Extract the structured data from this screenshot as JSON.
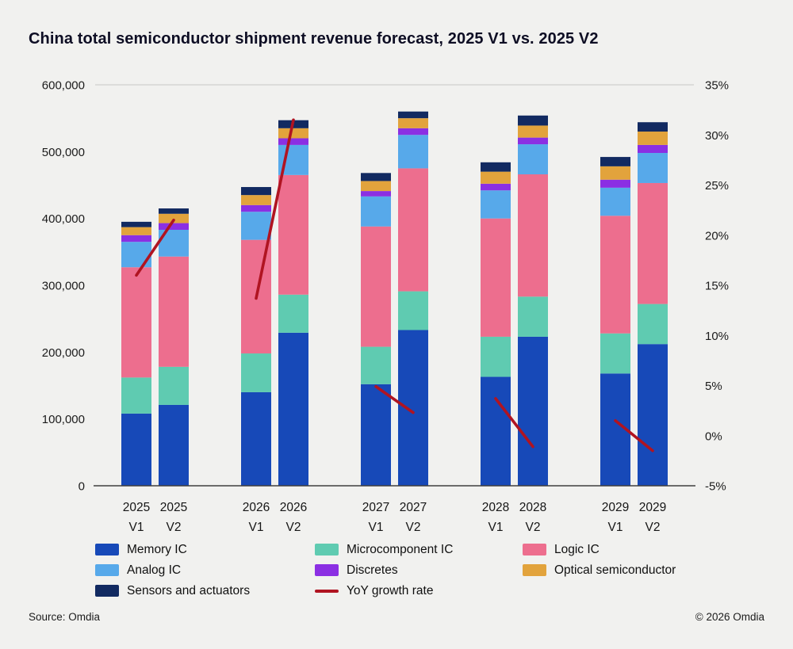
{
  "title": "China total semiconductor shipment revenue forecast, 2025 V1 vs. 2025 V2",
  "footer": {
    "source": "Source: Omdia",
    "copyright": "© 2026 Omdia"
  },
  "chart_data": {
    "type": "bar",
    "stacked": true,
    "legend_position": "bottom",
    "grid": "top-line-only",
    "categories": [
      "2025 V1",
      "2025 V2",
      "2026 V1",
      "2026 V2",
      "2027 V1",
      "2027 V2",
      "2028 V1",
      "2028 V2",
      "2029 V1",
      "2029 V2"
    ],
    "series": [
      {
        "name": "Memory IC",
        "color": "#1749b8",
        "values": [
          108000,
          121000,
          140000,
          229000,
          152000,
          233000,
          163000,
          223000,
          168000,
          212000
        ]
      },
      {
        "name": "Microcomponent IC",
        "color": "#5fcbb1",
        "values": [
          54000,
          57000,
          58000,
          57000,
          56000,
          58000,
          60000,
          60000,
          60000,
          60000
        ]
      },
      {
        "name": "Logic IC",
        "color": "#ed6e8e",
        "values": [
          165000,
          165000,
          170000,
          179000,
          180000,
          184000,
          177000,
          183000,
          176000,
          181000
        ]
      },
      {
        "name": "Analog IC",
        "color": "#57a9ea",
        "values": [
          38000,
          40000,
          42000,
          45000,
          45000,
          50000,
          42000,
          45000,
          42000,
          45000
        ]
      },
      {
        "name": "Discretes",
        "color": "#8b2fe3",
        "values": [
          10000,
          10000,
          10000,
          10000,
          8000,
          10000,
          10000,
          10000,
          12000,
          12000
        ]
      },
      {
        "name": "Optical semiconductor",
        "color": "#e2a33c",
        "values": [
          12000,
          14000,
          15000,
          15000,
          15000,
          15000,
          18000,
          18000,
          20000,
          20000
        ]
      },
      {
        "name": "Sensors and actuators",
        "color": "#122a61",
        "values": [
          8000,
          8000,
          12000,
          12000,
          12000,
          10000,
          14000,
          15000,
          14000,
          14000
        ]
      }
    ],
    "line_series": {
      "name": "YoY growth rate",
      "color": "#b01421",
      "axis": "right",
      "segmented_by_pair": true,
      "values_pct": [
        16.0,
        21.5,
        13.7,
        31.5,
        4.9,
        2.3,
        3.7,
        -1.1,
        1.5,
        -1.5
      ]
    },
    "y_left": {
      "min": 0,
      "max": 600000,
      "ticks": [
        "0",
        "100,000",
        "200,000",
        "300,000",
        "400,000",
        "500,000",
        "600,000"
      ]
    },
    "y_right": {
      "min": -5,
      "max": 35,
      "ticks": [
        "-5%",
        "0%",
        "5%",
        "10%",
        "15%",
        "20%",
        "25%",
        "30%",
        "35%"
      ]
    }
  }
}
